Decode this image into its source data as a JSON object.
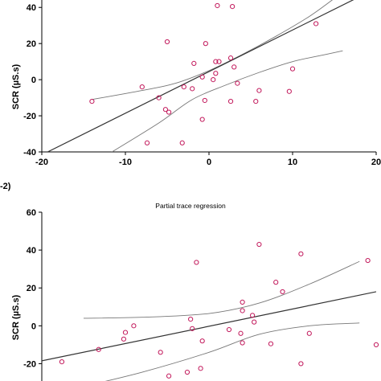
{
  "chart_data": [
    {
      "type": "scatter",
      "title": "",
      "xlabel": "",
      "ylabel": "SCR (µS.s)",
      "xlim": [
        -20,
        20
      ],
      "ylim": [
        -40,
        45
      ],
      "xticks": [
        "-20",
        "-10",
        "0",
        "10",
        "20"
      ],
      "yticks": [
        "-40",
        "-20",
        "0",
        "20",
        "40"
      ],
      "points": [
        {
          "x": 1.0,
          "y": 41
        },
        {
          "x": 2.8,
          "y": 40.5
        },
        {
          "x": -5.0,
          "y": 21
        },
        {
          "x": -0.4,
          "y": 20
        },
        {
          "x": 12.8,
          "y": 31
        },
        {
          "x": -1.8,
          "y": 9
        },
        {
          "x": 0.8,
          "y": 10
        },
        {
          "x": 1.2,
          "y": 10
        },
        {
          "x": 2.6,
          "y": 12
        },
        {
          "x": 3.0,
          "y": 7
        },
        {
          "x": -0.8,
          "y": 1.5
        },
        {
          "x": 0.8,
          "y": 3.5
        },
        {
          "x": 0.5,
          "y": 0
        },
        {
          "x": -3.0,
          "y": -4
        },
        {
          "x": -2.0,
          "y": -5
        },
        {
          "x": -8.0,
          "y": -4
        },
        {
          "x": -6.0,
          "y": -10
        },
        {
          "x": 3.4,
          "y": -2
        },
        {
          "x": 6.0,
          "y": -6
        },
        {
          "x": 10.0,
          "y": 6
        },
        {
          "x": 9.6,
          "y": -6.5
        },
        {
          "x": -14.0,
          "y": -12
        },
        {
          "x": -0.5,
          "y": -11.5
        },
        {
          "x": 2.6,
          "y": -12
        },
        {
          "x": 5.6,
          "y": -12
        },
        {
          "x": -5.2,
          "y": -16.5
        },
        {
          "x": -4.8,
          "y": -18
        },
        {
          "x": -0.8,
          "y": -22
        },
        {
          "x": -7.4,
          "y": -35
        },
        {
          "x": -3.2,
          "y": -35
        }
      ],
      "fit_line": [
        [
          -19.3,
          -40
        ],
        [
          17.6,
          45
        ]
      ],
      "ci_upper": [
        [
          -14,
          -11
        ],
        [
          -8,
          -6
        ],
        [
          -4,
          -2
        ],
        [
          0,
          5
        ],
        [
          4,
          14
        ],
        [
          8,
          24
        ],
        [
          12,
          35
        ],
        [
          15,
          45
        ]
      ],
      "ci_lower": [
        [
          -11.6,
          -40
        ],
        [
          -6,
          -24
        ],
        [
          -2,
          -11
        ],
        [
          2,
          -3
        ],
        [
          6,
          4
        ],
        [
          10,
          10
        ],
        [
          14,
          14
        ],
        [
          16,
          16
        ]
      ]
    },
    {
      "type": "scatter",
      "panel_label": "-2)",
      "title": "Partial trace regression",
      "xlabel": "",
      "ylabel": "SCR (µS.s)",
      "xlim": [
        -20,
        20
      ],
      "ylim": [
        -30,
        60
      ],
      "yticks": [
        "-20",
        "0",
        "20",
        "40",
        "60"
      ],
      "points": [
        {
          "x": 6.0,
          "y": 43
        },
        {
          "x": 11.0,
          "y": 38
        },
        {
          "x": 19.0,
          "y": 34.5
        },
        {
          "x": -1.5,
          "y": 33.5
        },
        {
          "x": 8.0,
          "y": 23
        },
        {
          "x": 8.8,
          "y": 18
        },
        {
          "x": 4.0,
          "y": 12.5
        },
        {
          "x": 4.0,
          "y": 8
        },
        {
          "x": 5.2,
          "y": 5.5
        },
        {
          "x": 5.4,
          "y": 2
        },
        {
          "x": -2.2,
          "y": 3.5
        },
        {
          "x": -9.0,
          "y": 0
        },
        {
          "x": -10.0,
          "y": -3.5
        },
        {
          "x": -10.2,
          "y": -7
        },
        {
          "x": -2.0,
          "y": -1.5
        },
        {
          "x": -0.8,
          "y": -8
        },
        {
          "x": 2.4,
          "y": -2
        },
        {
          "x": 3.8,
          "y": -4
        },
        {
          "x": 12.0,
          "y": -4
        },
        {
          "x": 4.0,
          "y": -9
        },
        {
          "x": 7.4,
          "y": -9.5
        },
        {
          "x": 20.0,
          "y": -10
        },
        {
          "x": -13.2,
          "y": -12.5
        },
        {
          "x": -5.8,
          "y": -14
        },
        {
          "x": -4.8,
          "y": -26.5
        },
        {
          "x": -2.6,
          "y": -24.5
        },
        {
          "x": -1.0,
          "y": -22.5
        },
        {
          "x": 11.0,
          "y": -20
        },
        {
          "x": -17.6,
          "y": -19
        }
      ],
      "fit_line": [
        [
          -20,
          -18.5
        ],
        [
          20,
          18
        ]
      ],
      "ci_upper": [
        [
          -15,
          4
        ],
        [
          -8,
          4.5
        ],
        [
          0,
          6.5
        ],
        [
          6,
          12
        ],
        [
          12,
          22
        ],
        [
          18,
          34
        ]
      ],
      "ci_lower": [
        [
          -15,
          -32
        ],
        [
          -8,
          -24.5
        ],
        [
          0,
          -14
        ],
        [
          6,
          -4.5
        ],
        [
          12,
          0
        ],
        [
          18,
          1.5
        ]
      ]
    }
  ]
}
